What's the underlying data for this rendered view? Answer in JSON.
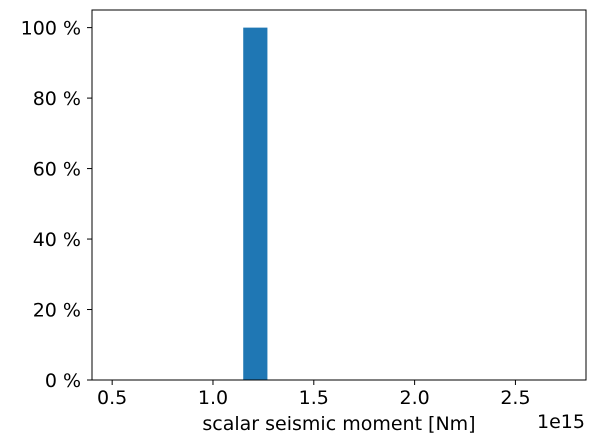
{
  "chart_data": {
    "type": "bar",
    "subtype": "histogram",
    "title": "",
    "xlabel": "scalar seismic moment [Nm]",
    "ylabel": "",
    "x_offset_label": "1e15",
    "x_scale_factor": 1000000000000000.0,
    "xlim": [
      0.4,
      2.85
    ],
    "ylim": [
      0,
      105
    ],
    "xticks": [
      0.5,
      1.0,
      1.5,
      2.0,
      2.5
    ],
    "xtick_labels": [
      "0.5",
      "1.0",
      "1.5",
      "2.0",
      "2.5"
    ],
    "yticks": [
      0,
      20,
      40,
      60,
      80,
      100
    ],
    "ytick_labels": [
      "0 %",
      "20 %",
      "40 %",
      "60 %",
      "80 %",
      "100 %"
    ],
    "bars": [
      {
        "x_start": 1.15,
        "x_end": 1.27,
        "value": 100
      }
    ],
    "grid": false,
    "legend": "none",
    "bar_color": "#1f77b4"
  }
}
